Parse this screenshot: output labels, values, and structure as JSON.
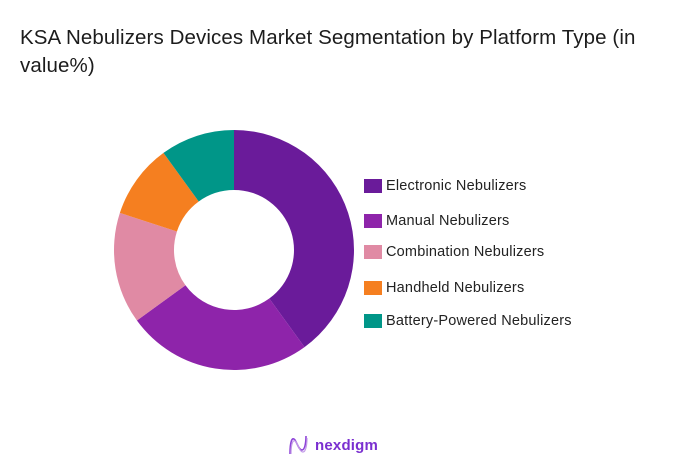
{
  "title": "KSA Nebulizers Devices Market Segmentation by Platform Type (in value%)",
  "chart_data": {
    "type": "pie",
    "subtype": "donut",
    "title": "KSA Nebulizers Devices Market Segmentation by Platform Type (in value%)",
    "categories": [
      "Electronic Nebulizers",
      "Manual Nebulizers",
      "Combination Nebulizers",
      "Handheld Nebulizers",
      "Battery-Powered Nebulizers"
    ],
    "values": [
      40,
      25,
      15,
      10,
      10
    ],
    "colors": [
      "#6a1b9a",
      "#8e24aa",
      "#e08aa4",
      "#f57f20",
      "#009688"
    ],
    "legend_position": "right",
    "start_angle": "12 o'clock, clockwise"
  },
  "legend": {
    "items": [
      {
        "label": "Electronic Nebulizers",
        "color": "#6a1b9a"
      },
      {
        "label": "Manual Nebulizers",
        "color": "#8e24aa"
      },
      {
        "label": "Combination Nebulizers",
        "color": "#e08aa4"
      },
      {
        "label": "Handheld Nebulizers",
        "color": "#f57f20"
      },
      {
        "label": "Battery-Powered Nebulizers",
        "color": "#009688"
      }
    ]
  },
  "brand": {
    "name": "nexdigm",
    "color": "#7a2fd0"
  }
}
